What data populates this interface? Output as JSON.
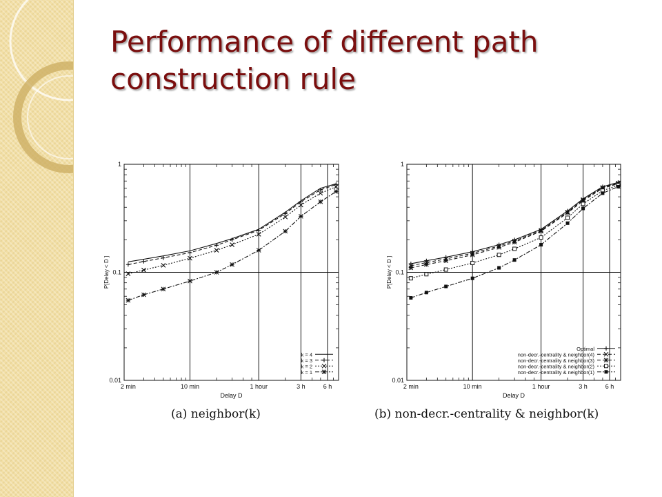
{
  "slide": {
    "title": "Performance of different path construction rule"
  },
  "chart_data": [
    {
      "type": "line",
      "caption": "(a) neighbor(k)",
      "xlabel": "Delay D",
      "ylabel": "P[Delay < D ]",
      "x_scale": "log",
      "y_scale": "log",
      "x_ticks": [
        "2 min",
        "10 min",
        "1 hour",
        "3 h",
        "6 h"
      ],
      "y_ticks": [
        "0.01",
        "0.1",
        "1"
      ],
      "ylim": [
        0.01,
        1
      ],
      "legend_position": "bottom-right",
      "x": [
        2,
        3,
        5,
        10,
        20,
        30,
        60,
        120,
        180,
        300,
        450
      ],
      "series": [
        {
          "name": "k = 4",
          "marker": "none",
          "dash": "solid",
          "values": [
            0.125,
            0.132,
            0.142,
            0.158,
            0.185,
            0.205,
            0.25,
            0.36,
            0.46,
            0.6,
            0.66
          ]
        },
        {
          "name": "k = 3",
          "marker": "plus",
          "dash": "dash",
          "values": [
            0.118,
            0.126,
            0.136,
            0.152,
            0.178,
            0.2,
            0.245,
            0.35,
            0.45,
            0.58,
            0.65
          ]
        },
        {
          "name": "k = 2",
          "marker": "x",
          "dash": "dot",
          "values": [
            0.097,
            0.105,
            0.116,
            0.135,
            0.16,
            0.18,
            0.225,
            0.325,
            0.42,
            0.54,
            0.62
          ]
        },
        {
          "name": "k = 1",
          "marker": "star",
          "dash": "dashdot",
          "values": [
            0.055,
            0.062,
            0.07,
            0.083,
            0.1,
            0.118,
            0.16,
            0.24,
            0.33,
            0.45,
            0.56
          ]
        }
      ]
    },
    {
      "type": "line",
      "caption": "(b) non-decr.-centrality & neighbor(k)",
      "xlabel": "Delay D",
      "ylabel": "P[Delay < D ]",
      "x_scale": "log",
      "y_scale": "log",
      "x_ticks": [
        "2 min",
        "10 min",
        "1 hour",
        "3 h",
        "6 h"
      ],
      "y_ticks": [
        "0.01",
        "0.1",
        "1"
      ],
      "ylim": [
        0.01,
        1
      ],
      "legend_position": "bottom-right",
      "x": [
        2,
        3,
        5,
        10,
        20,
        30,
        60,
        120,
        180,
        300,
        450
      ],
      "series": [
        {
          "name": "Optimal",
          "marker": "plus",
          "dash": "solid",
          "values": [
            0.12,
            0.128,
            0.138,
            0.155,
            0.18,
            0.2,
            0.25,
            0.37,
            0.48,
            0.62,
            0.68
          ]
        },
        {
          "name": "non-decr.-centrality & neighbor(4)",
          "marker": "x",
          "dash": "dash",
          "values": [
            0.115,
            0.123,
            0.133,
            0.15,
            0.175,
            0.195,
            0.245,
            0.36,
            0.47,
            0.61,
            0.67
          ]
        },
        {
          "name": "non-decr.-centrality & neighbor(3)",
          "marker": "star",
          "dash": "dash",
          "values": [
            0.11,
            0.118,
            0.128,
            0.145,
            0.17,
            0.19,
            0.24,
            0.355,
            0.46,
            0.6,
            0.66
          ]
        },
        {
          "name": "non-decr.-centrality & neighbor(2)",
          "marker": "square",
          "dash": "dot",
          "values": [
            0.088,
            0.096,
            0.106,
            0.122,
            0.145,
            0.165,
            0.21,
            0.32,
            0.43,
            0.57,
            0.64
          ]
        },
        {
          "name": "non-decr.-centrality & neighbor(1)",
          "marker": "filled-square",
          "dash": "dashdot",
          "values": [
            0.058,
            0.065,
            0.074,
            0.088,
            0.11,
            0.13,
            0.18,
            0.285,
            0.39,
            0.54,
            0.62
          ]
        }
      ]
    }
  ]
}
